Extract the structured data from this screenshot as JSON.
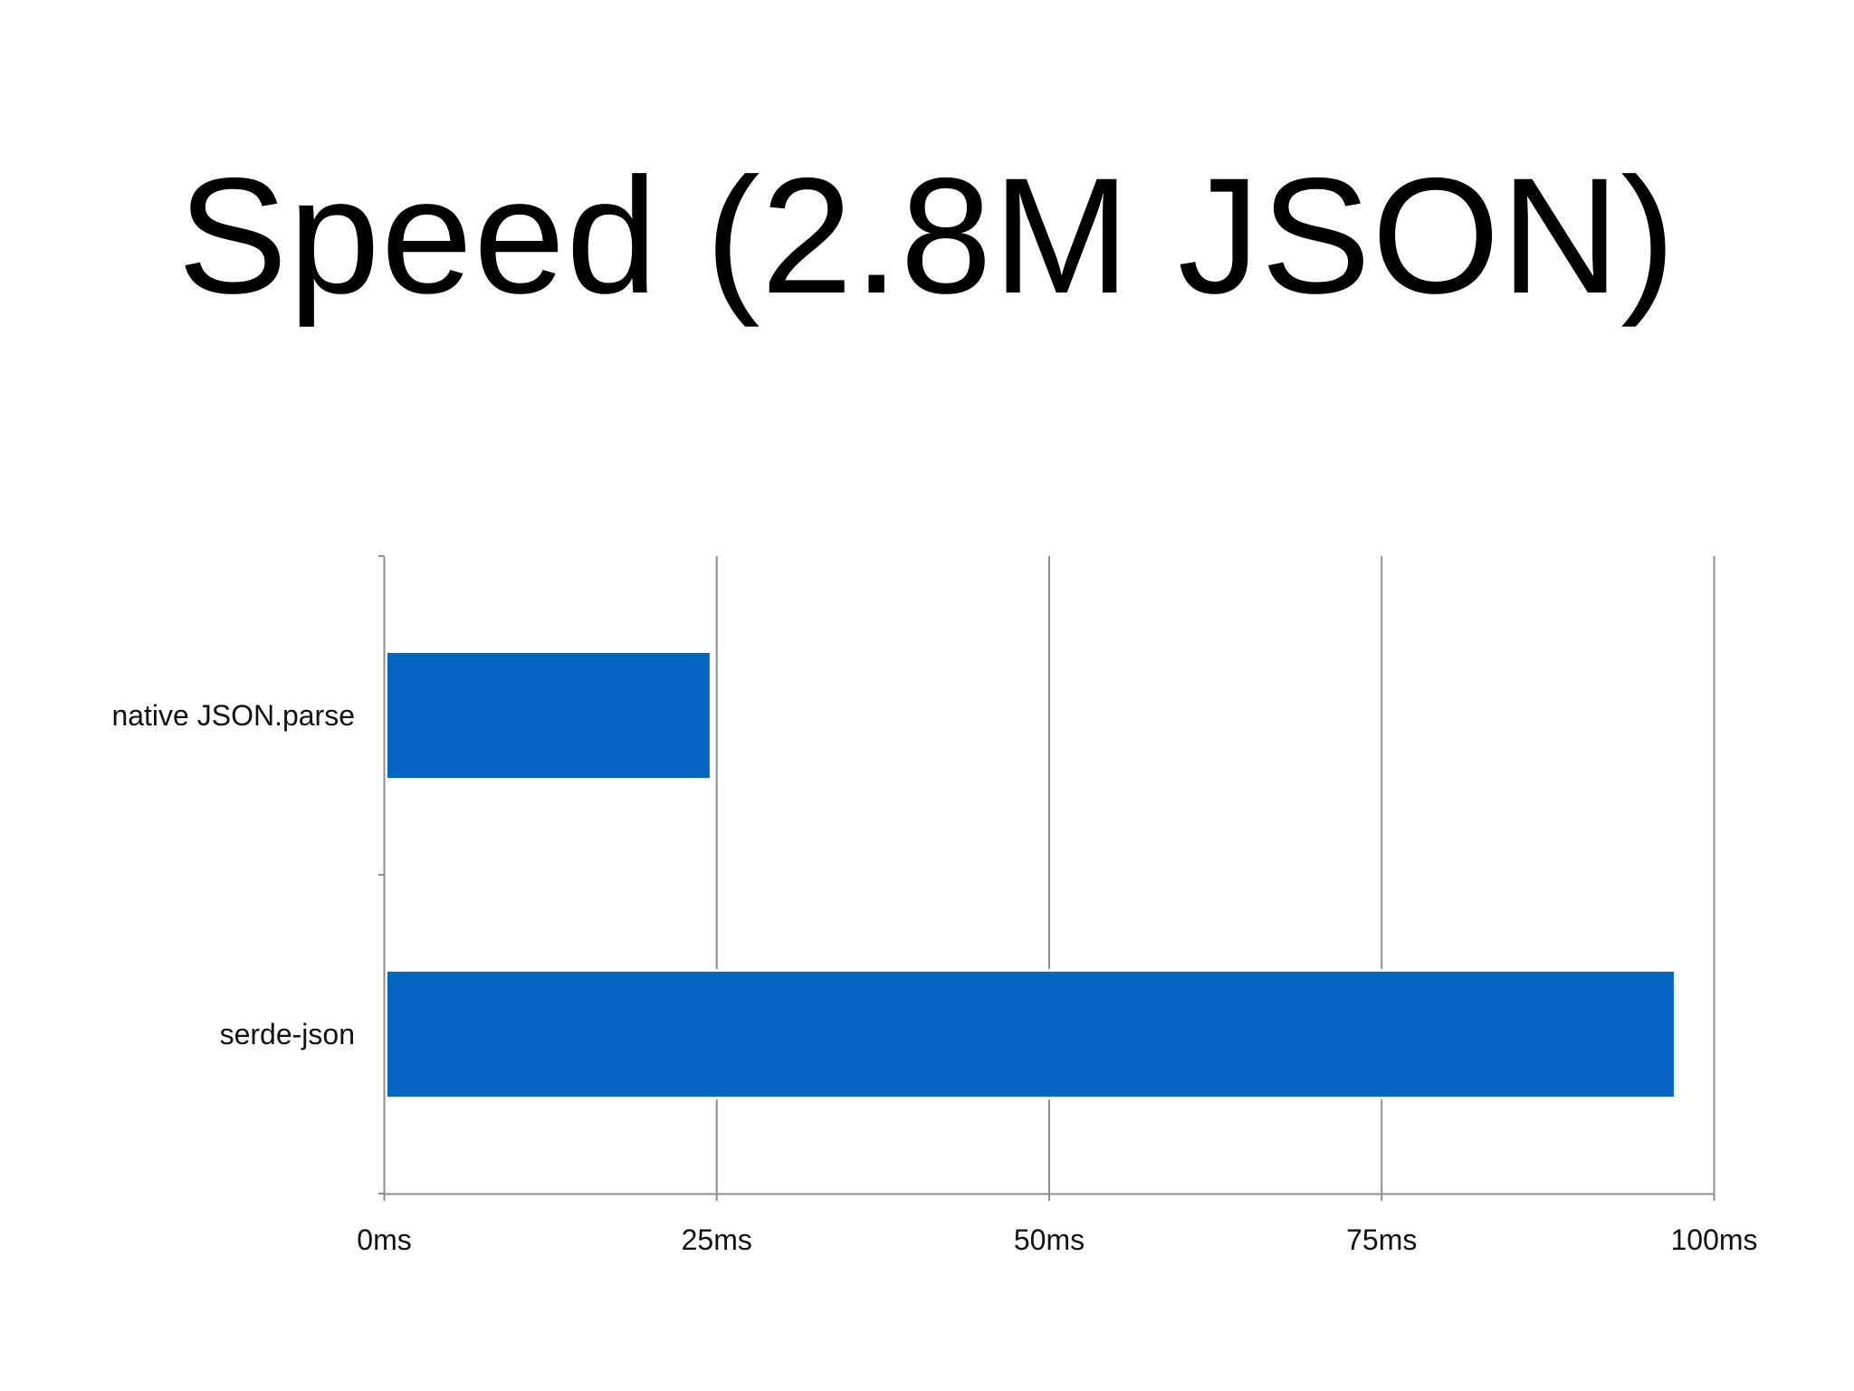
{
  "slide": {
    "title": "Speed (2.8M JSON)"
  },
  "chart_data": {
    "type": "bar",
    "orientation": "horizontal",
    "categories": [
      "native JSON.parse",
      "serde-json"
    ],
    "values": [
      24.5,
      97
    ],
    "unit": "ms",
    "xlim": [
      0,
      100
    ],
    "x_ticks": [
      0,
      25,
      50,
      75,
      100
    ],
    "x_tick_labels": [
      "0ms",
      "25ms",
      "50ms",
      "75ms",
      "100ms"
    ],
    "xlabel": "",
    "ylabel": "",
    "grid": "vertical",
    "legend": "none",
    "bar_color": "#0466c0",
    "grid_color": "#8e8e8e"
  }
}
